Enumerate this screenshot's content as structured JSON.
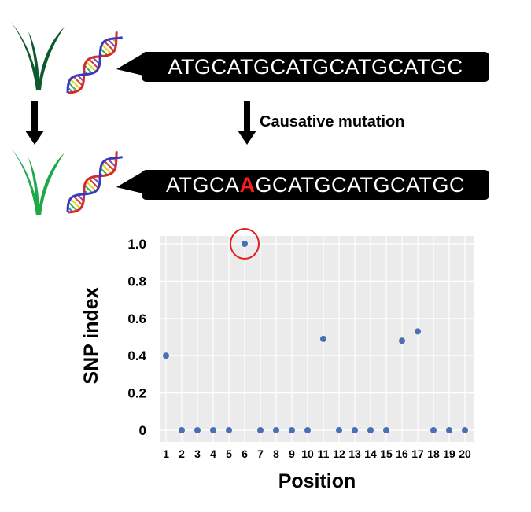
{
  "top": {
    "sequence_original": "ATGCATGCATGCATGCATGC",
    "sequence_mutant_prefix": "ATGCA",
    "sequence_mutant_base": "A",
    "sequence_mutant_suffix": "GCATGCATGCATGC",
    "mutation_label": "Causative mutation",
    "colors": {
      "parent_plant": "#0e5a2e",
      "mutant_plant": "#1fa84a",
      "mutation_highlight": "#ff1a1a"
    }
  },
  "chart_data": {
    "type": "scatter",
    "title": "",
    "xlabel": "Position",
    "ylabel": "SNP index",
    "ylim": [
      0,
      1.0
    ],
    "yticks": [
      "0",
      "0.2",
      "0.4",
      "0.6",
      "0.8",
      "1.0"
    ],
    "categories": [
      "1",
      "2",
      "3",
      "4",
      "5",
      "6",
      "7",
      "8",
      "9",
      "10",
      "11",
      "12",
      "13",
      "14",
      "15",
      "16",
      "17",
      "18",
      "19",
      "20"
    ],
    "values": [
      0.4,
      0,
      0,
      0,
      0,
      1.0,
      0,
      0,
      0,
      0,
      0.49,
      0,
      0,
      0,
      0,
      0.48,
      0.53,
      0,
      0,
      0
    ],
    "highlight_index": 5,
    "grid": true,
    "point_color": "#4a6fb5",
    "highlight_color": "#e02020"
  }
}
